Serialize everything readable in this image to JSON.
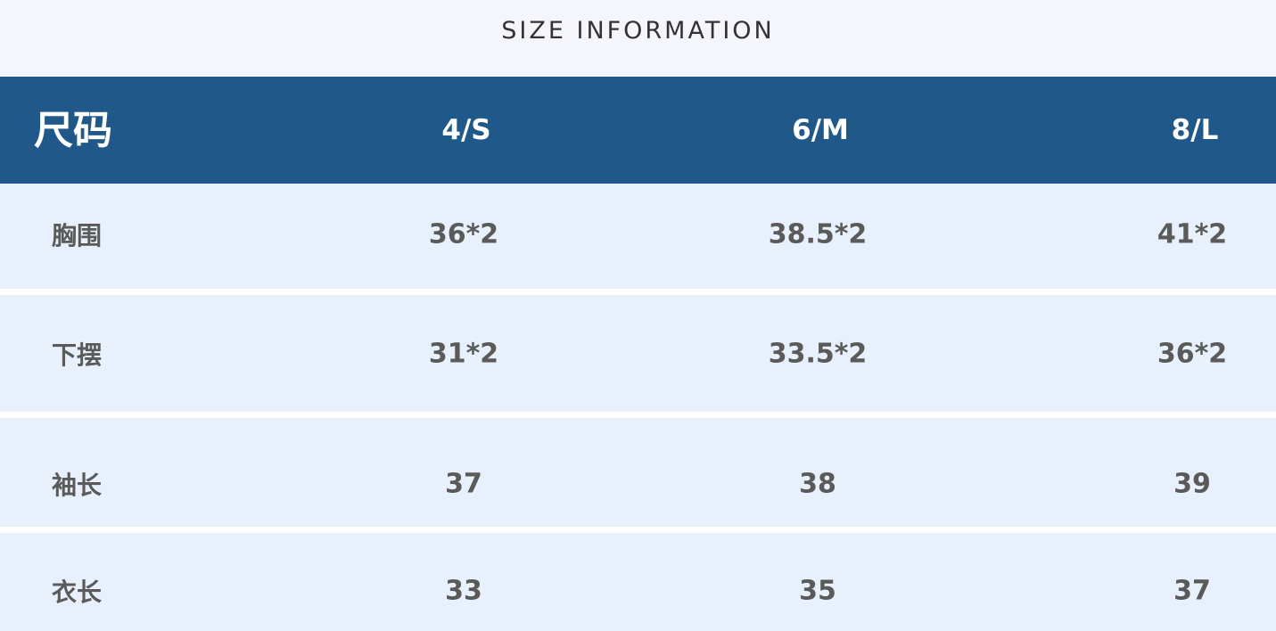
{
  "header": {
    "title": "SIZE INFORMATION"
  },
  "table": {
    "columns": [
      "尺码",
      "4/S",
      "6/M",
      "8/L"
    ],
    "rows": [
      [
        "胸围",
        "36*2",
        "38.5*2",
        "41*2"
      ],
      [
        "下摆",
        "31*2",
        "33.5*2",
        "36*2"
      ],
      [
        "袖长",
        "37",
        "38",
        "39"
      ],
      [
        "衣长",
        "33",
        "35",
        "37"
      ]
    ]
  }
}
